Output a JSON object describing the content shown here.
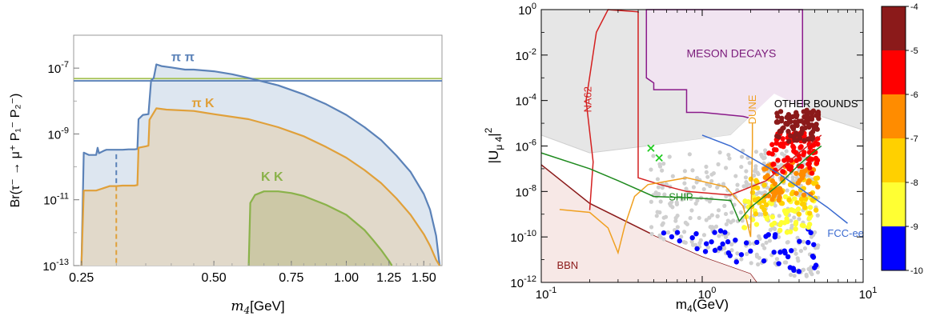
{
  "chart_data": [
    {
      "type": "area",
      "xlabel": "m",
      "xlabel_sub": "4",
      "xlabel_unit": "[GeV]",
      "ylabel": "Br(τ⁻ → μ⁺ P₁⁻ P₂⁻)",
      "xscale": "log",
      "yscale": "log",
      "xlim": [
        0.24,
        1.65
      ],
      "ylim": [
        1e-13,
        1e-06
      ],
      "xticks": [
        0.25,
        0.5,
        0.75,
        1.0,
        1.25,
        1.5
      ],
      "xtick_labels": [
        "0.25",
        "0.50",
        "0.75",
        "1.00",
        "1.25",
        "1.50"
      ],
      "yticks": [
        1e-13,
        1e-11,
        1e-09,
        1e-07
      ],
      "ytick_base": [
        "10",
        "10",
        "10",
        "10"
      ],
      "ytick_exp": [
        "-13",
        "-11",
        "-9",
        "-7"
      ],
      "hlines": [
        {
          "value": 4.8e-08,
          "color": "#a4c152"
        },
        {
          "value": 4.1e-08,
          "color": "#5b82b8"
        }
      ],
      "series": [
        {
          "name": "π π",
          "color": "#5b82b8",
          "fill": "#dde6f0",
          "x": [
            0.25,
            0.253,
            0.26,
            0.27,
            0.272,
            0.274,
            0.28,
            0.283,
            0.285,
            0.29,
            0.3,
            0.31,
            0.32,
            0.33,
            0.335,
            0.337,
            0.345,
            0.355,
            0.36,
            0.365,
            0.37,
            0.38,
            0.4,
            0.43,
            0.45,
            0.5,
            0.55,
            0.6,
            0.7,
            0.8,
            0.9,
            1.0,
            1.1,
            1.2,
            1.3,
            1.4,
            1.5,
            1.55,
            1.6,
            1.63
          ],
          "y": [
            1e-13,
            2.7e-10,
            2.3e-10,
            2.3e-10,
            3.8e-10,
            2.6e-10,
            3e-10,
            3.2e-10,
            3.3e-10,
            3.3e-10,
            3.3e-10,
            3.3e-10,
            3.4e-10,
            3.4e-10,
            3.5e-10,
            2.8e-09,
            3.8e-09,
            4e-09,
            4.2e-08,
            5e-08,
            1.3e-07,
            1.15e-07,
            1.05e-07,
            9e-08,
            9e-08,
            8e-08,
            6.5e-08,
            5e-08,
            3e-08,
            1.6e-08,
            8e-09,
            3.8e-09,
            1.6e-09,
            6.5e-10,
            2.2e-10,
            7e-11,
            1.5e-11,
            5e-12,
            8e-13,
            1e-13
          ]
        },
        {
          "name": "π K",
          "color": "#e0a03a",
          "fill": "#e2d6c3",
          "x": [
            0.25,
            0.253,
            0.27,
            0.29,
            0.3,
            0.31,
            0.32,
            0.33,
            0.335,
            0.337,
            0.35,
            0.355,
            0.357,
            0.37,
            0.39,
            0.45,
            0.5,
            0.6,
            0.7,
            0.8,
            0.9,
            1.0,
            1.1,
            1.2,
            1.3,
            1.4,
            1.5,
            1.55,
            1.6,
            1.63
          ],
          "y": [
            1e-13,
            1.9e-11,
            1.9e-11,
            2.6e-11,
            2.6e-11,
            2.7e-11,
            2.7e-11,
            2.7e-11,
            2.8e-11,
            3.8e-10,
            4.2e-10,
            4.4e-10,
            2.7e-09,
            6e-09,
            5.5e-09,
            5e-09,
            4e-09,
            2.8e-09,
            1.6e-09,
            8.5e-10,
            4e-10,
            1.9e-10,
            8e-11,
            3.2e-11,
            1.1e-11,
            3.5e-12,
            9e-13,
            4e-13,
            1.5e-13,
            1e-13
          ]
        },
        {
          "name": "K K",
          "color": "#8ab24a",
          "fill": "#c8c4a0",
          "x": [
            0.6,
            0.605,
            0.62,
            0.65,
            0.7,
            0.75,
            0.8,
            0.9,
            1.0,
            1.1,
            1.15,
            1.2,
            1.25,
            1.27
          ],
          "y": [
            1e-13,
            8e-12,
            1.4e-11,
            1.8e-11,
            1.8e-11,
            1.6e-11,
            1.3e-11,
            7e-12,
            3.5e-12,
            1.2e-12,
            6e-13,
            3e-13,
            1.4e-13,
            1e-13
          ]
        }
      ],
      "vline_dashed": {
        "x": 0.3,
        "y_top": 2.4e-10,
        "y_split": 2.6e-11
      },
      "annotations": [
        {
          "text": "π π",
          "x": 0.4,
          "y": 1.6e-07,
          "color": "#5b82b8"
        },
        {
          "text": "π K",
          "x": 0.445,
          "y": 6.5e-09,
          "color": "#e0a03a"
        },
        {
          "text": "K K",
          "x": 0.64,
          "y": 3.8e-11,
          "color": "#8ab24a"
        }
      ]
    },
    {
      "type": "scatter",
      "xlabel": "m",
      "xlabel_sub": "4",
      "xlabel_unit": "(GeV)",
      "ylabel": "|U",
      "ylabel_sub": "μ 4",
      "ylabel_end": "|",
      "ylabel_sup": "2",
      "xscale": "log",
      "yscale": "log",
      "xlim": [
        0.1,
        10
      ],
      "ylim": [
        1e-12,
        1
      ],
      "xtick_base": [
        "10",
        "10",
        "10"
      ],
      "xtick_exp": [
        "-1",
        "0",
        "1"
      ],
      "ytick_base": [
        "10",
        "10",
        "10",
        "10",
        "10",
        "10",
        "10"
      ],
      "ytick_exp": [
        "-12",
        "-10",
        "-8",
        "-6",
        "-4",
        "-2",
        "0"
      ],
      "regions": [
        {
          "name": "OTHER BOUNDS",
          "fill": "#e6e6e6"
        },
        {
          "name": "MESON DECAYS",
          "fill": "#f1e4f1",
          "stroke": "#8a1a8a"
        },
        {
          "name": "BBN",
          "fill": "#f7e8e6",
          "stroke": "#8b1a1a"
        }
      ],
      "curves": [
        {
          "name": "NA62",
          "color": "#d42020"
        },
        {
          "name": "DUNE",
          "color": "#f0a020"
        },
        {
          "name": "SHIP",
          "color": "#1e8a1e"
        },
        {
          "name": "FCC-ee",
          "color": "#3a6ad0"
        }
      ],
      "labels": [
        {
          "text": "MESON DECAYS",
          "color": "#7a1a7a"
        },
        {
          "text": "OTHER BOUNDS",
          "color": "#000000"
        },
        {
          "text": "NA62",
          "color": "#d42020"
        },
        {
          "text": "DUNE",
          "color": "#f0a020"
        },
        {
          "text": "SHIP",
          "color": "#1e8a1e"
        },
        {
          "text": "FCC-ee",
          "color": "#3a6ad0"
        },
        {
          "text": "BBN",
          "color": "#8b1a1a"
        }
      ],
      "markers_x": [
        {
          "x": 0.48,
          "y": 8e-07,
          "color": "#22cc22"
        },
        {
          "x": 0.54,
          "y": 3e-07,
          "color": "#22cc22"
        }
      ],
      "colorbar": {
        "ticks": [
          "-4",
          "-5",
          "-6",
          "-7",
          "-8",
          "-9",
          "-10"
        ],
        "colors": [
          "#8b1a1a",
          "#ff0000",
          "#ff8c00",
          "#ffd000",
          "#ffff33",
          "#0000ff"
        ]
      }
    }
  ]
}
